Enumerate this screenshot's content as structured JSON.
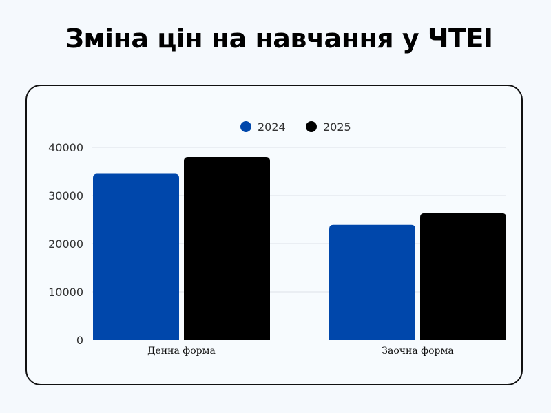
{
  "title": "Зміна цін на навчання у ЧТЕІ",
  "chart_data": {
    "type": "bar",
    "title": "Зміна цін на навчання у ЧТЕІ",
    "categories": [
      "Денна форма",
      "Заочна форма"
    ],
    "series": [
      {
        "name": "2024",
        "color": "#0047ab",
        "values": [
          34500,
          23900
        ]
      },
      {
        "name": "2025",
        "color": "#000000",
        "values": [
          38000,
          26300
        ]
      }
    ],
    "yticks": [
      "0",
      "10000",
      "20000",
      "30000",
      "40000"
    ],
    "ylim": [
      0,
      40000
    ],
    "xlabel": "",
    "ylabel": "",
    "grid": true,
    "legend_position": "top-center"
  }
}
